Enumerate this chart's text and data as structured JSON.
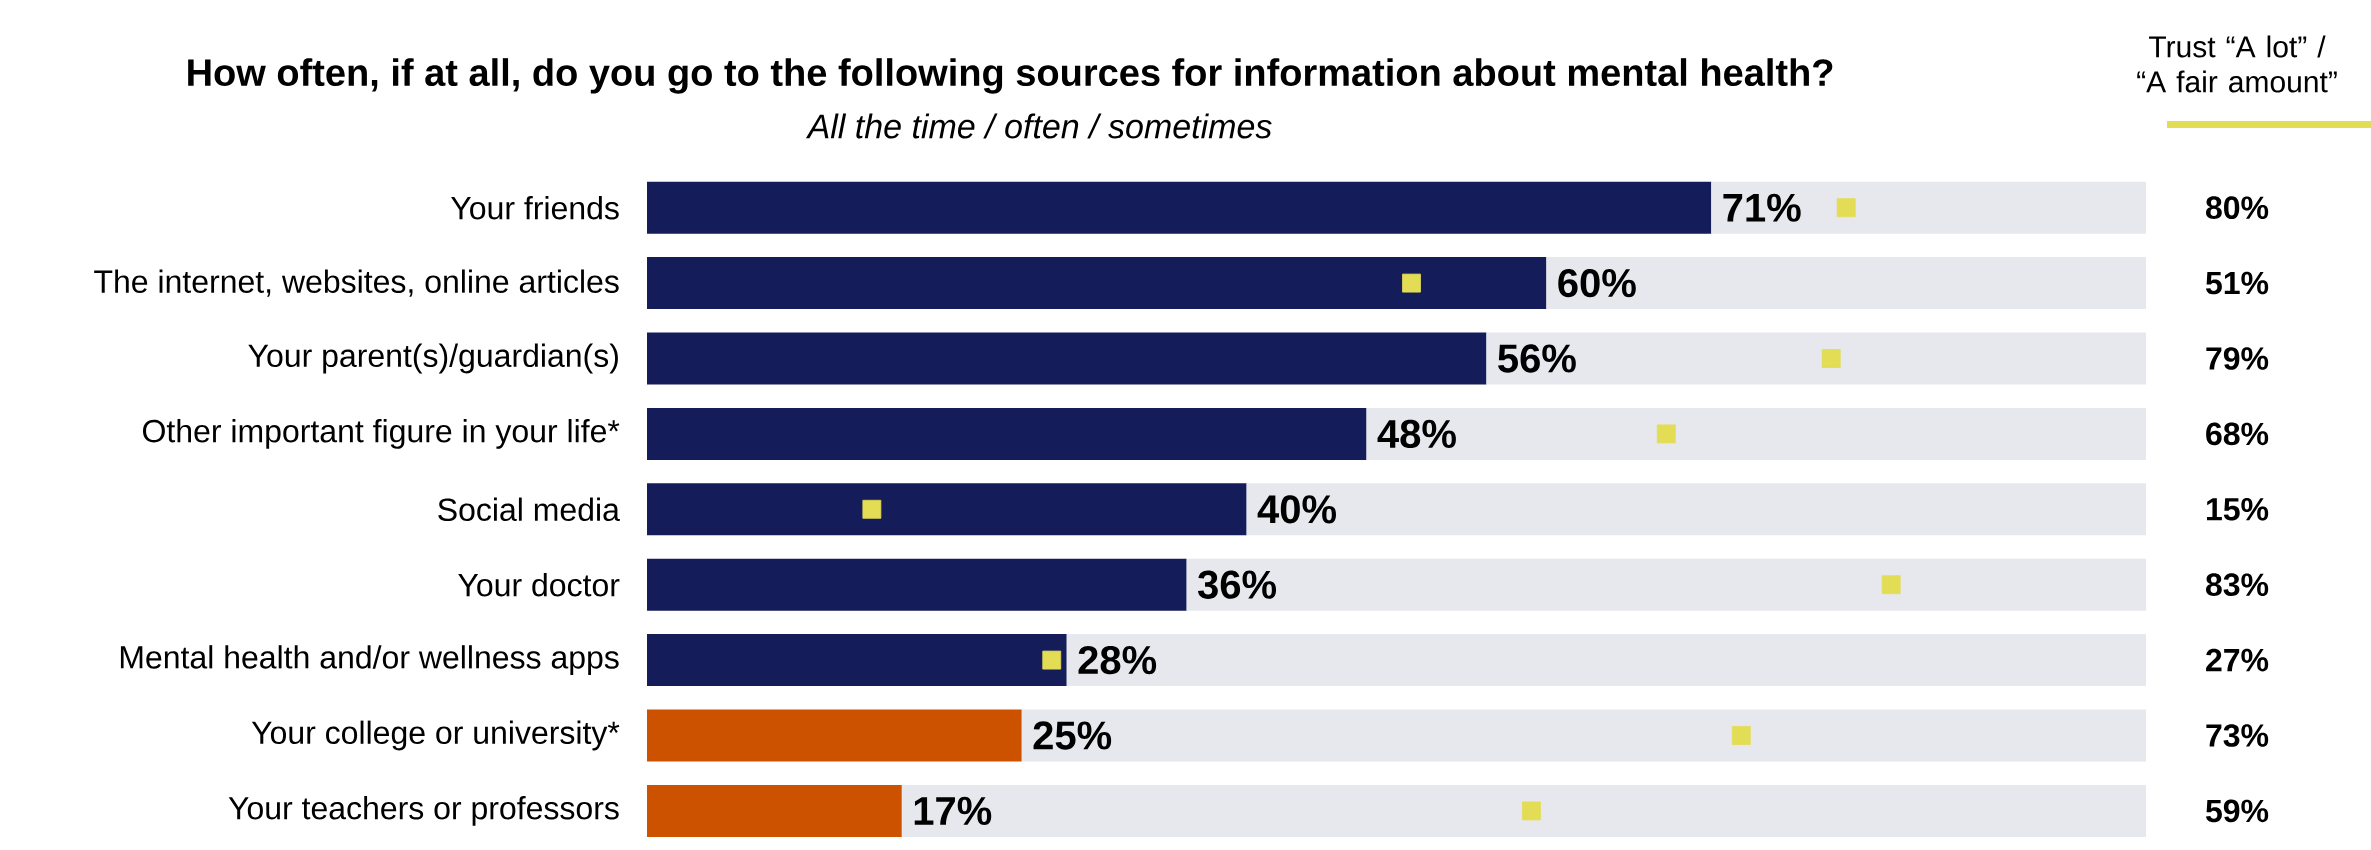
{
  "chart_data": {
    "type": "bar",
    "orientation": "horizontal",
    "title": "How often, if at all, do you go to the following sources for information about mental health?",
    "subtitle": "All the time / often / sometimes",
    "categories": [
      "Your friends",
      "The internet, websites, online articles",
      "Your parent(s)/guardian(s)",
      "Other important figure in your life*",
      "Social media",
      "Your doctor",
      "Mental health and/or wellness apps",
      "Your college or university*",
      "Your teachers or professors"
    ],
    "xlim": [
      0,
      100
    ],
    "tick_labels": "y",
    "stacked": true,
    "marker": "square",
    "series": [
      {
        "values": [
          71,
          60,
          56,
          48,
          40,
          36,
          28,
          25,
          17
        ],
        "colors": [
          "#141c5a",
          "#141c5a",
          "#141c5a",
          "#141c5a",
          "#141c5a",
          "#141c5a",
          "#141c5a",
          "#cc5200",
          "#cc5200"
        ],
        "value_labels": [
          "71%",
          "60%",
          "56%",
          "48%",
          "40%",
          "36%",
          "28%",
          "25%",
          "17%"
        ]
      },
      {
        "color": "#e6e8ed",
        "values": [
          29,
          40,
          44,
          52,
          60,
          64,
          72,
          75,
          83
        ]
      },
      {
        "type": "scatter",
        "name": "Trust “A lot” / “A fair amount”",
        "color": "#e3dc55",
        "values": [
          80,
          51,
          79,
          68,
          15,
          83,
          27,
          73,
          59
        ],
        "value_labels": [
          "80%",
          "51%",
          "79%",
          "68%",
          "15%",
          "83%",
          "27%",
          "73%",
          "59%"
        ]
      }
    ]
  }
}
